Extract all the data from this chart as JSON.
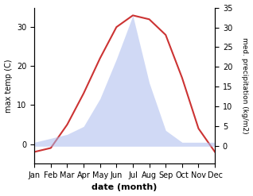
{
  "months": [
    "Jan",
    "Feb",
    "Mar",
    "Apr",
    "May",
    "Jun",
    "Jul",
    "Aug",
    "Sep",
    "Oct",
    "Nov",
    "Dec"
  ],
  "temp": [
    -2,
    -1,
    5,
    13,
    22,
    30,
    33,
    32,
    28,
    17,
    4,
    -2
  ],
  "precip": [
    1,
    2,
    3,
    5,
    12,
    22,
    33,
    16,
    4,
    1,
    1,
    1
  ],
  "temp_color": "#cc3333",
  "precip_color": "#aabbee",
  "precip_fill_alpha": 0.55,
  "left_ylim": [
    -5,
    35
  ],
  "right_ylim": [
    0,
    35
  ],
  "left_yticks": [
    0,
    10,
    20,
    30
  ],
  "right_yticks": [
    0,
    5,
    10,
    15,
    20,
    25,
    30,
    35
  ],
  "xlabel": "date (month)",
  "ylabel_left": "max temp (C)",
  "ylabel_right": "med. precipitation (kg/m2)",
  "figsize": [
    3.18,
    2.47
  ],
  "dpi": 100
}
